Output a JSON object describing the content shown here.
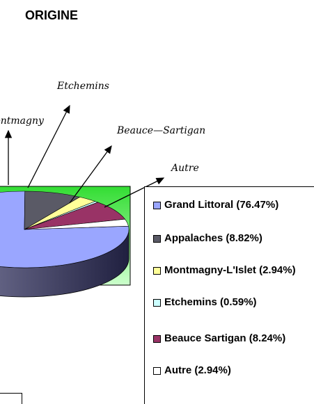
{
  "chart_data": {
    "type": "pie",
    "title": "ORIGINE",
    "categories": [
      "Grand Littoral (76.47%)",
      "Appalaches (8.82%)",
      "Montmagny-L'Islet (2.94%)",
      "Etchemins (0.59%)",
      "Beauce Sartigan (8.24%)",
      "Autre (2.94%)"
    ],
    "values": [
      76.47,
      8.82,
      2.94,
      0.59,
      8.24,
      2.94
    ],
    "colors": [
      "#9aa6ff",
      "#5a5a66",
      "#ffff99",
      "#ccffff",
      "#993366",
      "#ffffff"
    ],
    "annotations": [
      "Montmagny",
      "Etchemins",
      "Beauce—Sartigan",
      "Autre"
    ]
  }
}
